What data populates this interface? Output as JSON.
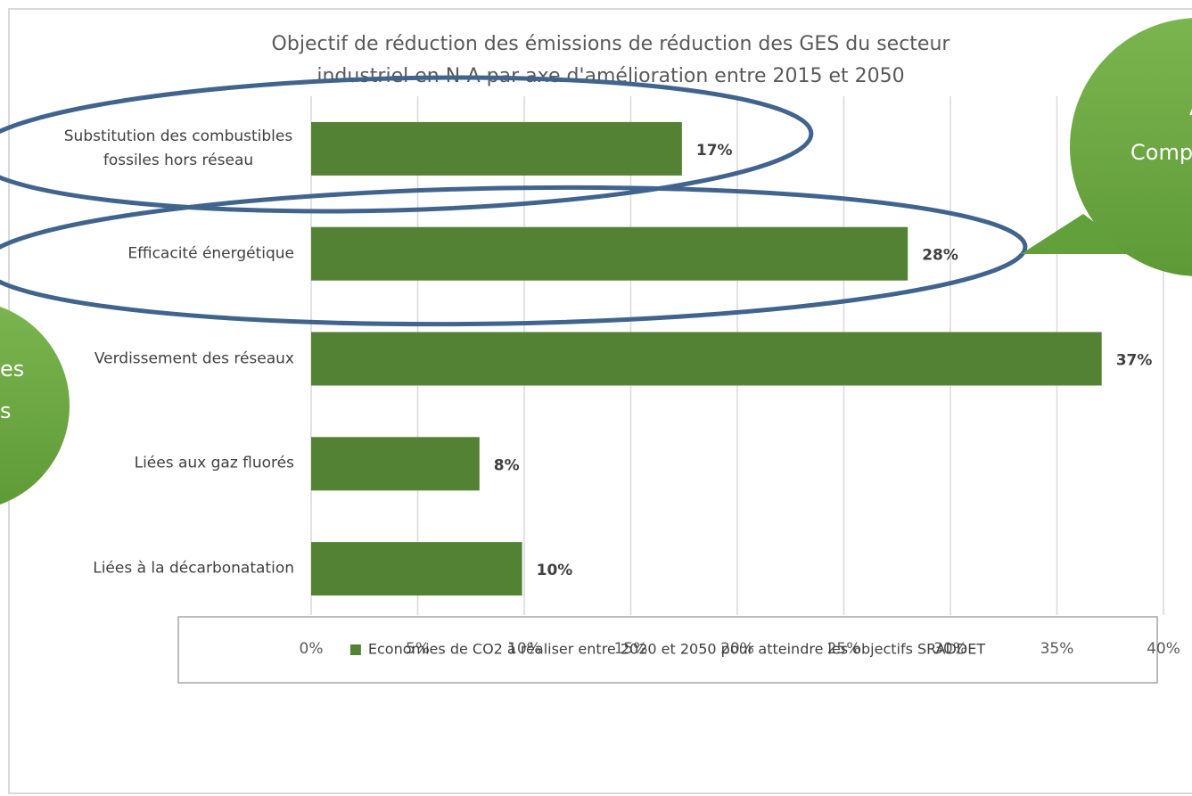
{
  "chart_data": {
    "type": "bar",
    "orientation": "horizontal",
    "title": [
      "Objectif de réduction des émissions de réduction des GES du secteur",
      "industriel en N-A  par axe d'amélioration entre 2015 et 2050"
    ],
    "categories": [
      "Substitution des combustibles fossiles hors réseau",
      "Efficacité énergétique",
      "Verdissement des réseaux",
      "Liées aux gaz fluorés",
      "Liées à la décarbonatation"
    ],
    "series": [
      {
        "name": "Economies de CO2 à réaliser entre 2020 et 2050 pour atteindre les objectifs SRADDET",
        "color": "#548235",
        "values": [
          17.4,
          28,
          37.1,
          7.9,
          9.9
        ],
        "value_labels": [
          "17%",
          "28%",
          "37%",
          "8%",
          "10%"
        ]
      }
    ],
    "xlim": [
      0,
      40
    ],
    "xticks": [
      {
        "value": 0,
        "label": "0%"
      },
      {
        "value": 5,
        "label": "5%"
      },
      {
        "value": 10,
        "label": "10%"
      },
      {
        "value": 15,
        "label": "15%"
      },
      {
        "value": 20,
        "label": "20%"
      },
      {
        "value": 25,
        "label": "25%"
      },
      {
        "value": 30,
        "label": "30%"
      },
      {
        "value": 35,
        "label": "35%"
      },
      {
        "value": 40,
        "label": "40%"
      }
    ],
    "grid": true,
    "legend": "bottom",
    "annotations": [
      [
        "A",
        "Compo"
      ],
      [
        "es",
        "s"
      ]
    ]
  }
}
